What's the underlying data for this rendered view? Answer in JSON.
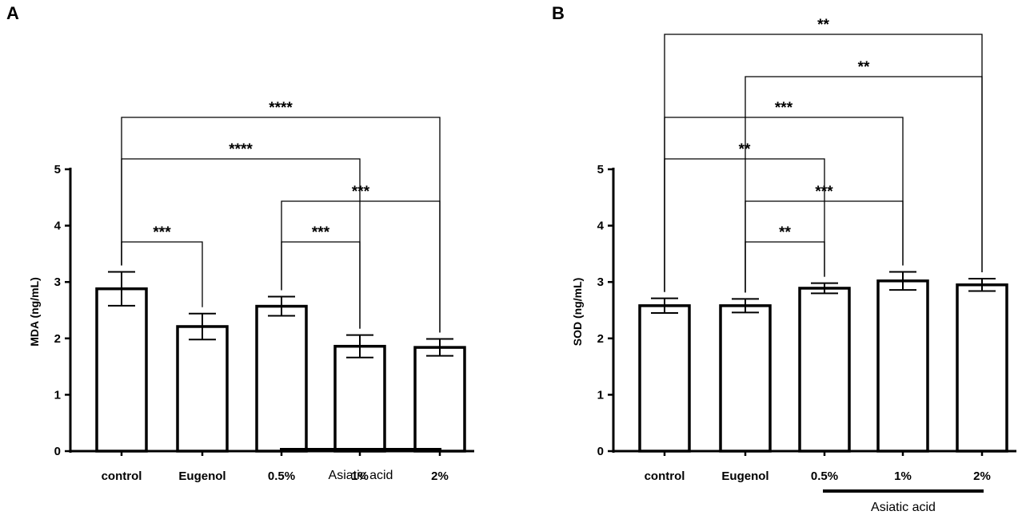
{
  "chart_data": [
    {
      "panel": "A",
      "type": "bar",
      "ylabel": "MDA (ng/mL)",
      "ylim": [
        0,
        5
      ],
      "yticks": [
        "0",
        "1",
        "2",
        "3",
        "4",
        "5"
      ],
      "categories": [
        "control",
        "Eugenol",
        "0.5%",
        "1%",
        "2%"
      ],
      "values": [
        2.88,
        2.21,
        2.57,
        1.86,
        1.84
      ],
      "errors": [
        0.3,
        0.23,
        0.17,
        0.2,
        0.15
      ],
      "group_label": "Asiatic acid",
      "group_span": [
        "0.5%",
        "2%"
      ],
      "grid": false,
      "comparisons": [
        {
          "from": "control",
          "to": "Eugenol",
          "label": "***"
        },
        {
          "from": "0.5%",
          "to": "1%",
          "label": "***"
        },
        {
          "from": "0.5%",
          "to": "2%",
          "label": "***"
        },
        {
          "from": "control",
          "to": "1%",
          "label": "****"
        },
        {
          "from": "control",
          "to": "2%",
          "label": "****"
        }
      ]
    },
    {
      "panel": "B",
      "type": "bar",
      "ylabel": "SOD (ng/mL)",
      "ylim": [
        0,
        5
      ],
      "yticks": [
        "0",
        "1",
        "2",
        "3",
        "4",
        "5"
      ],
      "categories": [
        "control",
        "Eugenol",
        "0.5%",
        "1%",
        "2%"
      ],
      "values": [
        2.58,
        2.58,
        2.89,
        3.02,
        2.95
      ],
      "errors": [
        0.13,
        0.12,
        0.09,
        0.16,
        0.11
      ],
      "group_label": "Asiatic acid",
      "group_span": [
        "0.5%",
        "2%"
      ],
      "grid": false,
      "comparisons": [
        {
          "from": "Eugenol",
          "to": "0.5%",
          "label": "**"
        },
        {
          "from": "Eugenol",
          "to": "1%",
          "label": "***"
        },
        {
          "from": "control",
          "to": "0.5%",
          "label": "**"
        },
        {
          "from": "control",
          "to": "1%",
          "label": "***"
        },
        {
          "from": "Eugenol",
          "to": "2%",
          "label": "**"
        },
        {
          "from": "control",
          "to": "2%",
          "label": "**"
        }
      ]
    }
  ]
}
